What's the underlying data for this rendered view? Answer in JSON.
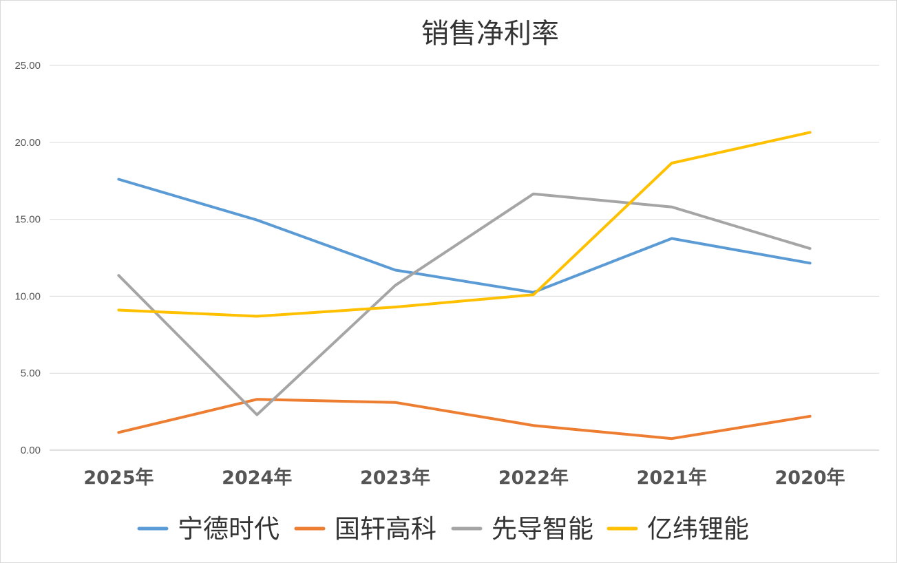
{
  "chart_data": {
    "type": "line",
    "title": "销售净利率",
    "categories": [
      "2025年",
      "2024年",
      "2023年",
      "2022年",
      "2021年",
      "2020年"
    ],
    "yticks": [
      "0.00",
      "5.00",
      "10.00",
      "15.00",
      "20.00",
      "25.00"
    ],
    "ylim": [
      0,
      25
    ],
    "grid": true,
    "legend": "bottom",
    "series": [
      {
        "name": "宁德时代",
        "color": "#5b9bd5",
        "values": [
          17.6,
          14.95,
          11.7,
          10.25,
          13.75,
          12.15
        ]
      },
      {
        "name": "国轩高科",
        "color": "#ed7d31",
        "values": [
          1.15,
          3.3,
          3.1,
          1.6,
          0.75,
          2.2
        ]
      },
      {
        "name": "先导智能",
        "color": "#a5a5a5",
        "values": [
          11.35,
          2.3,
          10.7,
          16.65,
          15.8,
          13.1
        ]
      },
      {
        "name": "亿纬锂能",
        "color": "#ffc000",
        "values": [
          9.1,
          8.7,
          9.3,
          10.1,
          18.65,
          20.65
        ]
      }
    ]
  }
}
